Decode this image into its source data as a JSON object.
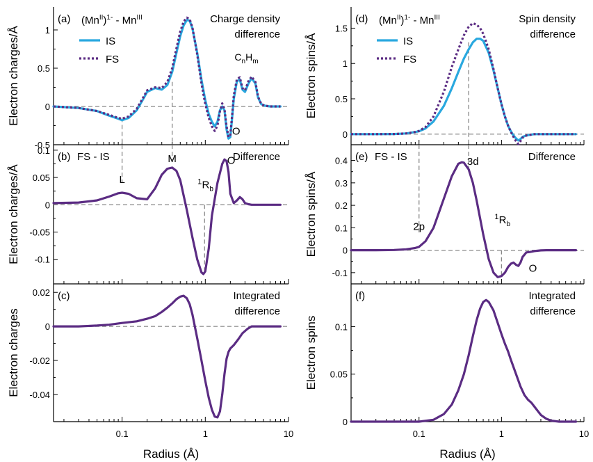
{
  "chart_data": [
    {
      "id": "a",
      "type": "line",
      "panel_label": "(a)",
      "title_left": "(Mn",
      "title_sup1": "II",
      "title_mid": ")",
      "title_sup2": "1-",
      "title_right": " - Mn",
      "title_sup3": "III",
      "title_right_line1": "Charge density",
      "title_right_line2": "difference",
      "ylabel": "Electron charges/Å",
      "xscale": "log",
      "xlim": [
        0.015,
        8
      ],
      "ylim": [
        -0.5,
        1.3
      ],
      "yticks": [
        -0.5,
        0,
        0.5,
        1
      ],
      "ytick_labels": [
        "-0.5",
        "0",
        "0.5",
        "1"
      ],
      "legend": [
        {
          "name": "IS",
          "color": "#29a8df",
          "style": "solid"
        },
        {
          "name": "FS",
          "color": "#5b2c83",
          "style": "dotted"
        }
      ],
      "annotations": [
        {
          "text": "C",
          "sub": "n",
          "text2": "H",
          "sub2": "m",
          "x": 3.0,
          "y": 0.6
        },
        {
          "text": "O",
          "x": 2.35,
          "y": -0.37
        }
      ],
      "series": [
        {
          "name": "IS",
          "color": "#29a8df",
          "style": "solid",
          "x": [
            0.015,
            0.03,
            0.05,
            0.07,
            0.09,
            0.1,
            0.12,
            0.15,
            0.18,
            0.2,
            0.25,
            0.3,
            0.35,
            0.4,
            0.45,
            0.5,
            0.55,
            0.6,
            0.65,
            0.7,
            0.8,
            0.9,
            1.0,
            1.1,
            1.2,
            1.3,
            1.4,
            1.5,
            1.6,
            1.7,
            1.8,
            1.9,
            2.0,
            2.1,
            2.2,
            2.4,
            2.6,
            2.8,
            3.0,
            3.3,
            3.6,
            4.0,
            4.3,
            4.7,
            5.2,
            6.0,
            7.0,
            8.0
          ],
          "y": [
            0.0,
            -0.02,
            -0.06,
            -0.12,
            -0.16,
            -0.18,
            -0.15,
            -0.05,
            0.1,
            0.19,
            0.24,
            0.22,
            0.28,
            0.45,
            0.7,
            0.92,
            1.06,
            1.13,
            1.12,
            1.02,
            0.7,
            0.35,
            0.08,
            -0.1,
            -0.2,
            -0.26,
            -0.2,
            -0.05,
            0.0,
            -0.05,
            -0.3,
            -0.42,
            -0.4,
            -0.15,
            0.1,
            0.33,
            0.35,
            0.22,
            0.19,
            0.3,
            0.37,
            0.3,
            0.12,
            0.03,
            0.01,
            0.0,
            0.0,
            0.0
          ]
        },
        {
          "name": "FS",
          "color": "#5b2c83",
          "style": "dotted",
          "x": [
            0.015,
            0.03,
            0.05,
            0.07,
            0.09,
            0.1,
            0.12,
            0.15,
            0.18,
            0.2,
            0.25,
            0.3,
            0.35,
            0.4,
            0.45,
            0.5,
            0.55,
            0.6,
            0.65,
            0.7,
            0.8,
            0.9,
            1.0,
            1.1,
            1.2,
            1.3,
            1.4,
            1.5,
            1.6,
            1.7,
            1.8,
            1.9,
            2.0,
            2.1,
            2.2,
            2.4,
            2.6,
            2.8,
            3.0,
            3.3,
            3.6,
            4.0,
            4.3,
            4.7,
            5.2,
            6.0,
            7.0,
            8.0
          ],
          "y": [
            0.0,
            -0.02,
            -0.06,
            -0.11,
            -0.15,
            -0.16,
            -0.13,
            -0.03,
            0.12,
            0.21,
            0.25,
            0.24,
            0.32,
            0.5,
            0.76,
            0.98,
            1.11,
            1.16,
            1.14,
            1.03,
            0.68,
            0.3,
            0.03,
            -0.15,
            -0.26,
            -0.32,
            -0.25,
            -0.06,
            0.04,
            -0.04,
            -0.26,
            -0.4,
            -0.37,
            -0.12,
            0.14,
            0.36,
            0.38,
            0.24,
            0.21,
            0.33,
            0.39,
            0.32,
            0.13,
            0.03,
            0.01,
            0.0,
            0.0,
            0.0
          ]
        }
      ],
      "guides": [
        {
          "x": 0.1,
          "y_from": -0.15,
          "y_to": -0.5
        },
        {
          "x": 0.4,
          "y_from": 0.32,
          "y_to": -0.5
        }
      ]
    },
    {
      "id": "b",
      "type": "line",
      "panel_label": "(b)",
      "subtitle": "FS - IS",
      "title_right_line1": "Difference",
      "ylabel": "Electron charges/Å",
      "xscale": "log",
      "xlim": [
        0.015,
        8
      ],
      "ylim": [
        -0.145,
        0.11
      ],
      "yticks": [
        -0.1,
        -0.05,
        0,
        0.05,
        0.1
      ],
      "ytick_labels": [
        "-0.1",
        "-0.05",
        "0",
        "0.05",
        "0.1"
      ],
      "annotations": [
        {
          "text": "L",
          "x": 0.1,
          "y": 0.04
        },
        {
          "text": "M",
          "x": 0.4,
          "y": 0.078
        },
        {
          "text": "O",
          "x": 2.05,
          "y": 0.075
        },
        {
          "text": "½R_b",
          "x": 0.98,
          "y": 0.03
        }
      ],
      "series": [
        {
          "name": "FS - IS",
          "color": "#5b2c83",
          "style": "solid",
          "x": [
            0.015,
            0.03,
            0.05,
            0.07,
            0.09,
            0.1,
            0.12,
            0.15,
            0.2,
            0.25,
            0.3,
            0.35,
            0.4,
            0.45,
            0.5,
            0.6,
            0.7,
            0.8,
            0.9,
            0.95,
            1.0,
            1.1,
            1.2,
            1.4,
            1.6,
            1.7,
            1.8,
            1.9,
            2.0,
            2.2,
            2.4,
            2.6,
            2.8,
            3.0,
            3.3,
            3.6,
            4.0,
            5.0,
            6.0,
            8.0
          ],
          "y": [
            0.003,
            0.004,
            0.008,
            0.015,
            0.021,
            0.022,
            0.02,
            0.012,
            0.01,
            0.03,
            0.055,
            0.066,
            0.068,
            0.062,
            0.045,
            -0.01,
            -0.06,
            -0.1,
            -0.124,
            -0.127,
            -0.122,
            -0.08,
            -0.02,
            0.04,
            0.075,
            0.083,
            0.08,
            0.06,
            0.02,
            0.003,
            0.008,
            0.014,
            0.01,
            0.003,
            0.001,
            0.0,
            0.0,
            0.0,
            0.0,
            0.0
          ]
        }
      ],
      "guides": [
        {
          "x": 0.1,
          "y_from": 0.11,
          "y_to": 0.04
        },
        {
          "x": 0.4,
          "y_from": 0.11,
          "y_to": 0.082
        },
        {
          "x": 0.98,
          "y_from": 0.0,
          "y_to": -0.124
        }
      ]
    },
    {
      "id": "c",
      "type": "line",
      "panel_label": "(c)",
      "title_right_line1": "Integrated",
      "title_right_line2": "difference",
      "ylabel": "Electron charges",
      "xlabel": "Radius (Å)",
      "xscale": "log",
      "xlim": [
        0.015,
        8
      ],
      "ylim": [
        -0.056,
        0.025
      ],
      "yticks": [
        -0.04,
        -0.02,
        0,
        0.02
      ],
      "ytick_labels": [
        "-0.04",
        "-0.02",
        "0",
        "0.02"
      ],
      "xticks": [
        0.1,
        1,
        10
      ],
      "xtick_labels": [
        "0.1",
        "1",
        "10"
      ],
      "series": [
        {
          "name": "Integrated",
          "color": "#5b2c83",
          "style": "solid",
          "x": [
            0.015,
            0.03,
            0.05,
            0.07,
            0.1,
            0.15,
            0.2,
            0.25,
            0.3,
            0.35,
            0.4,
            0.45,
            0.5,
            0.55,
            0.6,
            0.65,
            0.7,
            0.8,
            0.9,
            1.0,
            1.1,
            1.2,
            1.3,
            1.4,
            1.5,
            1.6,
            1.7,
            1.8,
            1.9,
            2.0,
            2.2,
            2.5,
            2.8,
            3.2,
            3.6,
            4.0,
            5.0,
            6.0,
            8.0
          ],
          "y": [
            0.0,
            0.0,
            0.0005,
            0.001,
            0.002,
            0.003,
            0.0045,
            0.006,
            0.0085,
            0.011,
            0.0135,
            0.016,
            0.0175,
            0.018,
            0.0165,
            0.013,
            0.007,
            -0.007,
            -0.02,
            -0.032,
            -0.042,
            -0.049,
            -0.053,
            -0.0535,
            -0.05,
            -0.04,
            -0.028,
            -0.019,
            -0.015,
            -0.013,
            -0.011,
            -0.0075,
            -0.004,
            -0.0015,
            0.0,
            0.0,
            0.0,
            0.0,
            0.0
          ]
        }
      ]
    },
    {
      "id": "d",
      "type": "line",
      "panel_label": "(d)",
      "title_left": "(Mn",
      "title_sup1": "II",
      "title_mid": ")",
      "title_sup2": "1-",
      "title_right": " - Mn",
      "title_sup3": "III",
      "title_right_line1": "Spin density",
      "title_right_line2": "difference",
      "ylabel": "Electron spins/Å",
      "xscale": "log",
      "xlim": [
        0.015,
        8
      ],
      "ylim": [
        -0.15,
        1.8
      ],
      "yticks": [
        0,
        0.5,
        1,
        1.5
      ],
      "ytick_labels": [
        "0",
        "0.5",
        "1",
        "1.5"
      ],
      "legend": [
        {
          "name": "IS",
          "color": "#29a8df",
          "style": "solid"
        },
        {
          "name": "FS",
          "color": "#5b2c83",
          "style": "dotted"
        }
      ],
      "series": [
        {
          "name": "IS",
          "color": "#29a8df",
          "style": "solid",
          "x": [
            0.015,
            0.03,
            0.05,
            0.07,
            0.09,
            0.1,
            0.12,
            0.15,
            0.2,
            0.25,
            0.3,
            0.35,
            0.4,
            0.45,
            0.5,
            0.55,
            0.6,
            0.7,
            0.8,
            0.9,
            1.0,
            1.1,
            1.2,
            1.3,
            1.4,
            1.5,
            1.6,
            1.7,
            1.8,
            2.0,
            2.2,
            2.5,
            3.0,
            3.5,
            4.0,
            5.0,
            6.0,
            8.0
          ],
          "y": [
            0.0,
            0.0,
            0.002,
            0.01,
            0.03,
            0.04,
            0.08,
            0.18,
            0.4,
            0.65,
            0.88,
            1.07,
            1.2,
            1.3,
            1.35,
            1.35,
            1.32,
            1.15,
            0.9,
            0.65,
            0.42,
            0.25,
            0.12,
            0.04,
            -0.02,
            -0.06,
            -0.09,
            -0.07,
            -0.04,
            -0.02,
            -0.01,
            0.0,
            0.0,
            0.0,
            0.0,
            0.0,
            0.0,
            0.0
          ]
        },
        {
          "name": "FS",
          "color": "#5b2c83",
          "style": "dotted",
          "x": [
            0.015,
            0.03,
            0.05,
            0.07,
            0.09,
            0.1,
            0.12,
            0.15,
            0.2,
            0.25,
            0.3,
            0.35,
            0.4,
            0.45,
            0.5,
            0.55,
            0.6,
            0.7,
            0.8,
            0.9,
            1.0,
            1.1,
            1.2,
            1.3,
            1.4,
            1.5,
            1.6,
            1.7,
            1.8,
            2.0,
            2.2,
            2.5,
            3.0,
            3.5,
            4.0,
            5.0,
            6.0,
            8.0
          ],
          "y": [
            0.0,
            0.0,
            0.002,
            0.01,
            0.03,
            0.045,
            0.1,
            0.25,
            0.6,
            0.95,
            1.2,
            1.4,
            1.52,
            1.57,
            1.55,
            1.5,
            1.42,
            1.2,
            0.92,
            0.65,
            0.42,
            0.25,
            0.12,
            0.03,
            -0.04,
            -0.1,
            -0.14,
            -0.1,
            -0.05,
            -0.02,
            -0.01,
            0.0,
            0.0,
            0.0,
            0.0,
            0.0,
            0.0,
            0.0
          ]
        }
      ],
      "guides": [
        {
          "x": 0.4,
          "y_from": 1.3,
          "y_to": -0.15
        }
      ]
    },
    {
      "id": "e",
      "type": "line",
      "panel_label": "(e)",
      "subtitle": "FS - IS",
      "title_right_line1": "Difference",
      "ylabel": "Electron spins/Å",
      "xscale": "log",
      "xlim": [
        0.015,
        8
      ],
      "ylim": [
        -0.15,
        0.47
      ],
      "yticks": [
        -0.1,
        0,
        0.1,
        0.2,
        0.3,
        0.4
      ],
      "ytick_labels": [
        "-0.1",
        "0",
        "0.1",
        "0.2",
        "0.3",
        "0.4"
      ],
      "annotations": [
        {
          "text": "3d",
          "x": 0.45,
          "y": 0.38
        },
        {
          "text": "2p",
          "x": 0.1,
          "y": 0.09
        },
        {
          "text": "O",
          "x": 2.4,
          "y": -0.095
        },
        {
          "text": "½R_b",
          "x": 1.0,
          "y": 0.12
        }
      ],
      "series": [
        {
          "name": "FS - IS",
          "color": "#5b2c83",
          "style": "solid",
          "x": [
            0.015,
            0.03,
            0.05,
            0.07,
            0.09,
            0.1,
            0.12,
            0.15,
            0.2,
            0.25,
            0.3,
            0.33,
            0.35,
            0.4,
            0.45,
            0.5,
            0.6,
            0.7,
            0.8,
            0.9,
            1.0,
            1.1,
            1.2,
            1.3,
            1.4,
            1.5,
            1.6,
            1.7,
            1.8,
            2.0,
            2.2,
            2.5,
            3.0,
            3.5,
            4.0,
            5.0,
            6.0,
            8.0
          ],
          "y": [
            0.0,
            0.0,
            0.001,
            0.004,
            0.01,
            0.015,
            0.04,
            0.1,
            0.23,
            0.33,
            0.385,
            0.392,
            0.39,
            0.36,
            0.3,
            0.22,
            0.07,
            -0.04,
            -0.1,
            -0.12,
            -0.115,
            -0.1,
            -0.075,
            -0.06,
            -0.055,
            -0.065,
            -0.07,
            -0.055,
            -0.03,
            -0.01,
            -0.008,
            -0.004,
            -0.001,
            0.0,
            0.0,
            0.0,
            0.0,
            0.0
          ]
        }
      ],
      "guides": [
        {
          "x": 0.1,
          "y_from": 0.47,
          "y_to": 0.075
        },
        {
          "x": 0.4,
          "y_from": 0.47,
          "y_to": 0.36
        },
        {
          "x": 1.0,
          "y_from": 0.0,
          "y_to": -0.12
        }
      ]
    },
    {
      "id": "f",
      "type": "line",
      "panel_label": "(f)",
      "title_right_line1": "Integrated",
      "title_right_line2": "difference",
      "ylabel": "Electron spins",
      "xlabel": "Radius (Å)",
      "xscale": "log",
      "xlim": [
        0.015,
        8
      ],
      "ylim": [
        0,
        0.145
      ],
      "yticks": [
        0,
        0.05,
        0.1
      ],
      "ytick_labels": [
        "0",
        "0.05",
        "0.1"
      ],
      "xticks": [
        0.1,
        1,
        10
      ],
      "xtick_labels": [
        "0.1",
        "1",
        "10"
      ],
      "series": [
        {
          "name": "Integrated",
          "color": "#5b2c83",
          "style": "solid",
          "x": [
            0.015,
            0.05,
            0.1,
            0.15,
            0.2,
            0.25,
            0.3,
            0.35,
            0.4,
            0.45,
            0.5,
            0.55,
            0.6,
            0.65,
            0.7,
            0.8,
            0.9,
            1.0,
            1.1,
            1.2,
            1.3,
            1.5,
            1.7,
            1.9,
            2.1,
            2.3,
            2.6,
            3.0,
            3.5,
            4.0,
            5.0,
            6.0,
            8.0
          ],
          "y": [
            0.0,
            0.0,
            0.0,
            0.002,
            0.008,
            0.018,
            0.033,
            0.05,
            0.07,
            0.09,
            0.107,
            0.119,
            0.126,
            0.128,
            0.126,
            0.117,
            0.104,
            0.092,
            0.082,
            0.074,
            0.065,
            0.05,
            0.037,
            0.028,
            0.023,
            0.02,
            0.014,
            0.007,
            0.003,
            0.001,
            0.0,
            0.0,
            0.0
          ]
        }
      ]
    }
  ]
}
